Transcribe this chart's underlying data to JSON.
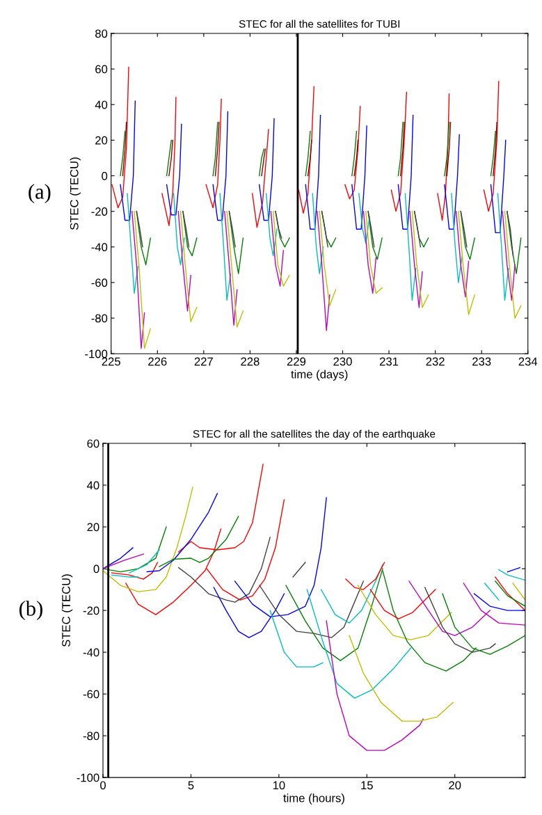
{
  "chart_data": [
    {
      "type": "line",
      "title": "STEC for all the satellites for TUBI",
      "xlabel": "time (days)",
      "ylabel": "STEC (TECU)",
      "xlim": [
        225,
        234
      ],
      "xticks": [
        225,
        226,
        227,
        228,
        229,
        230,
        231,
        232,
        233,
        234
      ],
      "ylim": [
        -100,
        80
      ],
      "yticks": [
        -100,
        -80,
        -60,
        -40,
        -20,
        0,
        20,
        40,
        60,
        80
      ],
      "grid": false,
      "legend": false,
      "annotations": [
        "(a)"
      ],
      "ref_lines": [
        {
          "axis": "x",
          "value": 229.03,
          "color": "#000000"
        }
      ],
      "series": [
        {
          "color": "#ff0000",
          "x": [
            225.02,
            225.15,
            225.25,
            225.33,
            225.38,
            225.4,
            226.1,
            226.25,
            226.33,
            226.38,
            226.4,
            226.42,
            227.05,
            227.2,
            227.3,
            227.35,
            227.38,
            227.4,
            228.05,
            228.15,
            228.27,
            228.35,
            228.4,
            228.42,
            229.05,
            229.15,
            229.25,
            229.33,
            229.38,
            229.4,
            230.05,
            230.15,
            230.25,
            230.33,
            230.38,
            230.4,
            231.05,
            231.15,
            231.25,
            231.33,
            231.38,
            231.4,
            232.05,
            232.15,
            232.22,
            232.27,
            232.3,
            232.32,
            233.05,
            233.15,
            233.25,
            233.33,
            233.37
          ],
          "values": [
            -5,
            -18,
            -12,
            15,
            61,
            null,
            -10,
            -28,
            -10,
            20,
            44,
            null,
            -5,
            -18,
            -5,
            20,
            43,
            null,
            -10,
            -29,
            -15,
            10,
            26,
            null,
            -8,
            -21,
            -10,
            20,
            50,
            null,
            -5,
            -13,
            -8,
            15,
            39,
            null,
            -8,
            -20,
            -10,
            20,
            47,
            null,
            -10,
            -25,
            -10,
            15,
            46,
            null,
            -8,
            -20,
            -10,
            20,
            53
          ]
        },
        {
          "color": "#0000ff",
          "x": [
            225.2,
            225.3,
            225.4,
            225.48,
            225.52,
            225.54,
            226.2,
            226.3,
            226.4,
            226.48,
            226.52,
            226.54,
            227.2,
            227.3,
            227.4,
            227.48,
            227.52,
            227.54,
            228.2,
            228.3,
            228.4,
            228.48,
            228.52,
            228.54,
            229.2,
            229.3,
            229.4,
            229.48,
            229.52,
            229.54,
            230.2,
            230.3,
            230.4,
            230.48,
            230.52,
            230.54,
            231.2,
            231.3,
            231.4,
            231.48,
            231.52,
            231.54,
            232.2,
            232.3,
            232.4,
            232.48,
            232.52,
            232.54,
            233.2,
            233.3,
            233.4,
            233.48,
            233.52
          ],
          "values": [
            -5,
            -25,
            -25,
            0,
            42,
            null,
            -5,
            -22,
            -22,
            0,
            29,
            null,
            -5,
            -25,
            -25,
            0,
            36,
            null,
            -5,
            -25,
            -25,
            0,
            32,
            null,
            -5,
            -30,
            -30,
            0,
            34,
            null,
            -5,
            -30,
            -30,
            0,
            28,
            null,
            -5,
            -30,
            -30,
            0,
            34,
            null,
            -5,
            -30,
            -30,
            0,
            23,
            null,
            -5,
            -32,
            -32,
            0,
            20
          ]
        },
        {
          "color": "#008000",
          "x": [
            225.2,
            225.25,
            225.3,
            225.31,
            225.55,
            225.65,
            225.75,
            225.85,
            225.87,
            226.2,
            226.25,
            226.3,
            226.31,
            226.55,
            226.65,
            226.75,
            226.85,
            226.87,
            227.2,
            227.25,
            227.3,
            227.31,
            227.55,
            227.65,
            227.75,
            227.85,
            227.87,
            228.2,
            228.25,
            228.3,
            228.31,
            228.55,
            228.65,
            228.75,
            228.85,
            228.87,
            229.2,
            229.25,
            229.3,
            229.31,
            229.55,
            229.65,
            229.75,
            229.85,
            229.87,
            230.2,
            230.25,
            230.3,
            230.31,
            230.55,
            230.65,
            230.75,
            230.85,
            230.87,
            231.2,
            231.25,
            231.3,
            231.31,
            231.55,
            231.65,
            231.75,
            231.85,
            231.87,
            232.2,
            232.25,
            232.3,
            232.31,
            232.55,
            232.65,
            232.75,
            232.85,
            232.87,
            233.2,
            233.25,
            233.3,
            233.31,
            233.55,
            233.65,
            233.75,
            233.85
          ],
          "values": [
            0,
            10,
            25,
            null,
            -20,
            -40,
            -50,
            -35,
            null,
            0,
            10,
            20,
            null,
            -20,
            -40,
            -45,
            -35,
            null,
            0,
            10,
            30,
            null,
            -20,
            -40,
            -55,
            -35,
            null,
            0,
            10,
            15,
            null,
            -20,
            -35,
            -40,
            -35,
            null,
            0,
            10,
            25,
            null,
            -20,
            -35,
            -40,
            -35,
            null,
            0,
            10,
            25,
            null,
            -20,
            -40,
            -47,
            -35,
            null,
            0,
            10,
            30,
            null,
            -20,
            -35,
            -40,
            -35,
            null,
            0,
            10,
            30,
            null,
            -20,
            -40,
            -47,
            -35,
            null,
            0,
            10,
            25,
            null,
            -20,
            -40,
            -55,
            -35
          ]
        },
        {
          "color": "#00bfbf",
          "x": [
            225.35,
            225.43,
            225.5,
            225.58,
            225.6,
            226.35,
            226.43,
            226.5,
            226.58,
            226.6,
            227.35,
            227.43,
            227.5,
            227.58,
            227.6,
            228.35,
            228.43,
            228.5,
            228.58,
            228.6,
            229.35,
            229.43,
            229.5,
            229.58,
            229.6,
            230.35,
            230.43,
            230.5,
            230.58,
            230.6,
            231.35,
            231.43,
            231.5,
            231.58,
            231.6,
            232.35,
            232.43,
            232.5,
            232.58,
            232.6,
            233.35,
            233.43,
            233.5,
            233.58
          ],
          "values": [
            -10,
            -40,
            -66,
            -51,
            null,
            -10,
            -40,
            -50,
            -35,
            null,
            -10,
            -40,
            -70,
            -55,
            null,
            -10,
            -35,
            -45,
            -30,
            null,
            -10,
            -40,
            -55,
            -40,
            null,
            -10,
            -30,
            -38,
            -23,
            null,
            -10,
            -40,
            -70,
            -52,
            null,
            -10,
            -40,
            -60,
            -45,
            null,
            -10,
            -40,
            -70,
            -52
          ]
        },
        {
          "color": "#bf00bf",
          "x": [
            225.45,
            225.55,
            225.65,
            225.72,
            225.74,
            226.45,
            226.55,
            226.65,
            226.72,
            226.74,
            227.45,
            227.55,
            227.65,
            227.72,
            227.74,
            228.45,
            228.55,
            228.65,
            228.72,
            228.74,
            229.45,
            229.55,
            229.65,
            229.72,
            229.74,
            230.45,
            230.55,
            230.65,
            230.72,
            230.74,
            231.45,
            231.55,
            231.65,
            231.72,
            231.74,
            232.45,
            232.55,
            232.65,
            232.72,
            232.74,
            233.45,
            233.55,
            233.65,
            233.72
          ],
          "values": [
            -20,
            -50,
            -97,
            -77,
            null,
            -20,
            -50,
            -76,
            -56,
            null,
            -20,
            -50,
            -84,
            -64,
            null,
            -20,
            -50,
            -62,
            -42,
            null,
            -20,
            -50,
            -87,
            -67,
            null,
            -20,
            -50,
            -66,
            -46,
            null,
            -20,
            -50,
            -74,
            -54,
            null,
            -20,
            -50,
            -68,
            -48,
            null,
            -20,
            -50,
            -70,
            -50
          ]
        },
        {
          "color": "#bfbf00",
          "x": [
            225.5,
            225.6,
            225.72,
            225.85,
            225.87,
            226.5,
            226.6,
            226.72,
            226.85,
            226.87,
            227.5,
            227.6,
            227.72,
            227.85,
            227.87,
            228.5,
            228.6,
            228.72,
            228.85,
            228.87,
            229.5,
            229.6,
            229.72,
            229.85,
            229.87,
            230.5,
            230.6,
            230.72,
            230.85,
            230.87,
            231.5,
            231.6,
            231.72,
            231.85,
            231.87,
            232.5,
            232.6,
            232.72,
            232.85,
            232.87,
            233.5,
            233.6,
            233.72,
            233.85
          ],
          "values": [
            -20,
            -50,
            -97,
            -86,
            null,
            -20,
            -50,
            -82,
            -74,
            null,
            -20,
            -50,
            -85,
            -76,
            null,
            -20,
            -50,
            -62,
            -56,
            null,
            -20,
            -50,
            -73,
            -64,
            null,
            -20,
            -50,
            -66,
            -63,
            null,
            -20,
            -50,
            -74,
            -67,
            null,
            -20,
            -50,
            -78,
            -67,
            null,
            -20,
            -50,
            -80,
            -73
          ]
        },
        {
          "color": "#800000",
          "x": [
            225.25,
            225.3,
            225.33,
            225.35,
            226.25,
            226.3,
            226.33,
            226.35,
            227.25,
            227.3,
            227.33,
            227.35,
            228.25,
            228.3,
            228.33,
            228.35,
            229.25,
            229.3,
            229.33,
            229.35,
            230.25,
            230.3,
            230.33,
            230.35,
            231.25,
            231.3,
            231.33,
            231.35,
            232.25,
            232.3,
            232.33,
            232.35,
            233.25,
            233.3,
            233.33
          ],
          "values": [
            0,
            15,
            30,
            null,
            0,
            10,
            20,
            null,
            0,
            15,
            30,
            null,
            0,
            10,
            15,
            null,
            0,
            10,
            20,
            null,
            0,
            10,
            20,
            null,
            0,
            15,
            30,
            null,
            0,
            15,
            30,
            null,
            0,
            15,
            30
          ]
        },
        {
          "color": "#404040",
          "x": [
            225.55,
            225.62,
            225.68,
            225.7,
            226.55,
            226.62,
            226.68,
            226.7,
            227.55,
            227.62,
            227.68,
            227.7,
            228.55,
            228.62,
            228.68,
            228.7,
            229.55,
            229.62,
            229.68,
            229.7,
            230.55,
            230.62,
            230.68,
            230.7,
            231.55,
            231.62,
            231.68,
            231.7,
            232.55,
            232.62,
            232.68,
            232.7,
            233.55,
            233.62,
            233.68
          ],
          "values": [
            -20,
            -30,
            -40,
            null,
            -20,
            -30,
            -40,
            null,
            -20,
            -30,
            -40,
            null,
            -20,
            -30,
            -35,
            null,
            -20,
            -30,
            -40,
            null,
            -20,
            -30,
            -40,
            null,
            -20,
            -30,
            -40,
            null,
            -20,
            -30,
            -40,
            null,
            -20,
            -30,
            -45
          ]
        }
      ]
    },
    {
      "type": "line",
      "title": "STEC for all the satellites the day of the earthquake",
      "xlabel": "time (hours)",
      "ylabel": "STEC (TECU)",
      "xlim": [
        0,
        24
      ],
      "xticks": [
        0,
        5,
        10,
        15,
        20
      ],
      "ylim": [
        -100,
        60
      ],
      "yticks": [
        -100,
        -80,
        -60,
        -40,
        -20,
        0,
        20,
        40,
        60
      ],
      "grid": false,
      "legend": false,
      "annotations": [
        "(b)"
      ],
      "ref_lines": [
        {
          "axis": "x",
          "value": 0.3,
          "color": "#000000"
        }
      ],
      "series": [
        {
          "color": "#ff0000",
          "x": [
            1.3,
            2,
            3,
            4,
            5,
            5.8,
            6.3,
            6.7
          ],
          "values": [
            -7,
            -17,
            -22,
            -16,
            -8,
            -1,
            8,
            19
          ]
        },
        {
          "color": "#ff0000",
          "x": [
            5.9,
            6.8,
            7.8,
            8.5,
            9.2,
            9.8,
            10.3
          ],
          "values": [
            0,
            -10,
            -15,
            -13,
            -5,
            10,
            33
          ]
        },
        {
          "color": "#ff0000",
          "x": [
            4.3,
            5,
            5.5,
            6.5,
            7.5,
            8,
            8.5,
            9.1
          ],
          "values": [
            8,
            13,
            10,
            9,
            10,
            13,
            22,
            50
          ]
        },
        {
          "color": "#ff0000",
          "x": [
            0.5,
            1.5,
            2.3,
            2.8,
            3.1
          ],
          "values": [
            -2,
            -3,
            -5,
            -2,
            3
          ]
        },
        {
          "color": "#bfbf00",
          "x": [
            0,
            1,
            2,
            3,
            3.6,
            4.2,
            4.7,
            5.1
          ],
          "values": [
            -1,
            -8,
            -11,
            -10,
            -4,
            10,
            25,
            39
          ]
        },
        {
          "color": "#0000ff",
          "x": [
            2.5,
            3.2,
            4,
            5,
            6,
            6.5
          ],
          "values": [
            -1.5,
            -1,
            4,
            14,
            27,
            36
          ]
        },
        {
          "color": "#008000",
          "x": [
            0,
            1,
            2,
            3,
            3.6
          ],
          "values": [
            0,
            -1.5,
            0,
            5,
            20
          ]
        },
        {
          "color": "#00bfbf",
          "x": [
            0.5,
            1.5,
            2
          ],
          "values": [
            -3,
            -4,
            -4
          ]
        },
        {
          "color": "#00bfbf",
          "x": [
            1.5,
            2.5,
            3.2
          ],
          "values": [
            -2,
            2,
            9
          ]
        },
        {
          "color": "#0000ff",
          "x": [
            0,
            1,
            1.7
          ],
          "values": [
            0,
            5,
            10
          ]
        },
        {
          "color": "#bf00bf",
          "x": [
            0,
            1.2,
            2.3
          ],
          "values": [
            0,
            4,
            7
          ]
        },
        {
          "color": "#008000",
          "x": [
            3.2,
            4,
            5,
            5.5,
            6,
            7,
            7.7
          ],
          "values": [
            1,
            4.5,
            5,
            3,
            5,
            14,
            25
          ]
        },
        {
          "color": "#404040",
          "x": [
            4.3,
            5,
            6,
            7,
            7.5,
            8.3,
            9,
            9.5
          ],
          "values": [
            0.5,
            -4,
            -12,
            -15,
            -16,
            -12,
            0,
            15
          ]
        },
        {
          "color": "#0000ff",
          "x": [
            6.3,
            7,
            7.7,
            8.3,
            9,
            9.8,
            10.3
          ],
          "values": [
            -9,
            -20,
            -30,
            -33,
            -30,
            -20,
            -12
          ]
        },
        {
          "color": "#0000ff",
          "x": [
            7.5,
            8.5,
            9.5,
            10.5,
            11.5,
            12,
            12.4,
            12.7
          ],
          "values": [
            -6,
            -17,
            -23,
            -22,
            -18,
            -8,
            10,
            34
          ]
        },
        {
          "color": "#404040",
          "x": [
            10.8,
            11.5
          ],
          "values": [
            -4,
            3
          ]
        },
        {
          "color": "#404040",
          "x": [
            8.9,
            10,
            11,
            12,
            13,
            13.7,
            14.5,
            14.8
          ],
          "values": [
            -8,
            -22,
            -30,
            -31,
            -33,
            -28,
            -12,
            -6
          ]
        },
        {
          "color": "#00bfbf",
          "x": [
            9.5,
            10.3,
            11,
            12,
            12.5
          ],
          "values": [
            -20,
            -40,
            -47,
            -47,
            -45
          ]
        },
        {
          "color": "#008000",
          "x": [
            10.4,
            11.5,
            12.5,
            13.5,
            14.5,
            15.2,
            15.9
          ],
          "values": [
            -8,
            -25,
            -38,
            -44,
            -38,
            -20,
            0
          ]
        },
        {
          "color": "#00bfbf",
          "x": [
            11.6,
            12.5,
            13.3,
            14.3,
            15.3,
            16.5,
            17.5
          ],
          "values": [
            -10,
            -35,
            -55,
            -62,
            -58,
            -48,
            -38
          ]
        },
        {
          "color": "#bf00bf",
          "x": [
            12.7,
            13.3,
            14,
            15,
            16,
            17,
            18,
            18.2
          ],
          "values": [
            -25,
            -60,
            -80,
            -87,
            -87,
            -82,
            -75,
            -72
          ]
        },
        {
          "color": "#00bfbf",
          "x": [
            12.4,
            13.2,
            14,
            14.7,
            15.5,
            15.9
          ],
          "values": [
            -10,
            -22,
            -26,
            -20,
            -6,
            2
          ]
        },
        {
          "color": "#bfbf00",
          "x": [
            14,
            14.8,
            15.8,
            17,
            18,
            19,
            19.9
          ],
          "values": [
            -32,
            -50,
            -64,
            -73,
            -73,
            -71,
            -64
          ]
        },
        {
          "color": "#ff0000",
          "x": [
            13.8,
            14.3,
            14.8,
            15.5,
            16
          ],
          "values": [
            -5,
            -9,
            -10,
            -5,
            3
          ]
        },
        {
          "color": "#bfbf00",
          "x": [
            14.5,
            15.5,
            16.5,
            17.5,
            18.5,
            19.8
          ],
          "values": [
            -8,
            -22,
            -32,
            -34,
            -32,
            -21
          ]
        },
        {
          "color": "#008000",
          "x": [
            15.9,
            16.5,
            17.3,
            18.3,
            19.5,
            20.5,
            21.2
          ],
          "values": [
            -1,
            -20,
            -35,
            -45,
            -49,
            -44,
            -38
          ]
        },
        {
          "color": "#ff0000",
          "x": [
            15.2,
            16,
            16.8,
            17.6,
            18.9
          ],
          "values": [
            -10,
            -20,
            -24,
            -21,
            -10
          ]
        },
        {
          "color": "#bf00bf",
          "x": [
            17.4,
            18.5,
            19.3,
            20,
            21,
            22
          ],
          "values": [
            -6,
            -20,
            -30,
            -32,
            -28,
            -20
          ]
        },
        {
          "color": "#404040",
          "x": [
            18.3,
            19.3,
            20,
            21,
            22,
            22.3
          ],
          "values": [
            -9,
            -28,
            -36,
            -40,
            -38,
            -36
          ]
        },
        {
          "color": "#008000",
          "x": [
            19.3,
            20,
            21,
            22,
            23,
            24
          ],
          "values": [
            -12,
            -28,
            -38,
            -41,
            -37,
            -32
          ]
        },
        {
          "color": "#bf00bf",
          "x": [
            20.5,
            21.5,
            22.5,
            24
          ],
          "values": [
            -7,
            -20,
            -26,
            -27
          ]
        },
        {
          "color": "#0000ff",
          "x": [
            21.1,
            22,
            23,
            24
          ],
          "values": [
            -12,
            -18,
            -20,
            -20
          ]
        },
        {
          "color": "#00bfbf",
          "x": [
            21.7,
            22.5
          ],
          "values": [
            -7,
            -15
          ]
        },
        {
          "color": "#ff0000",
          "x": [
            22.3,
            23,
            24
          ],
          "values": [
            -4,
            -12,
            -20
          ]
        },
        {
          "color": "#008000",
          "x": [
            22.3,
            23,
            24
          ],
          "values": [
            -6,
            -13,
            -18
          ]
        },
        {
          "color": "#00bfbf",
          "x": [
            22.5,
            23,
            24
          ],
          "values": [
            -0.5,
            -3,
            -5.5
          ]
        },
        {
          "color": "#0000ff",
          "x": [
            23,
            23.7
          ],
          "values": [
            -1.5,
            0.5
          ]
        },
        {
          "color": "#bfbf00",
          "x": [
            23.3,
            24
          ],
          "values": [
            -7,
            -15
          ]
        }
      ]
    }
  ]
}
